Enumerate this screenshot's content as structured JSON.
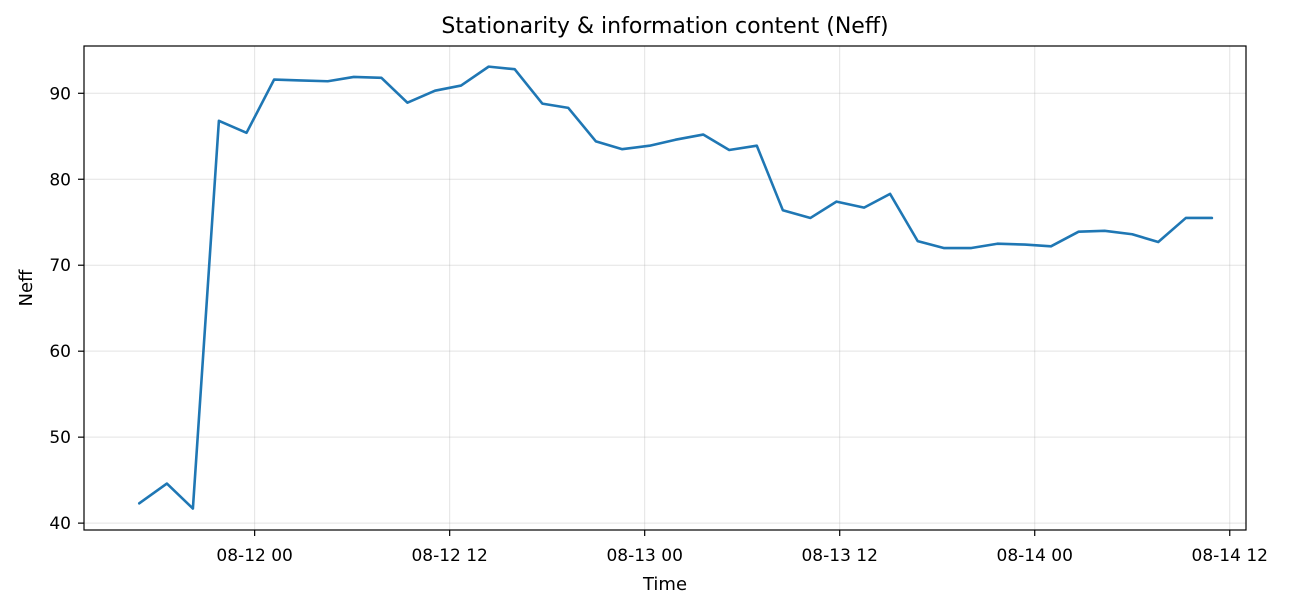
{
  "chart_data": {
    "type": "line",
    "title": "Stationarity & information content (Neff)",
    "xlabel": "Time",
    "ylabel": "Neff",
    "x_tick_labels": [
      "08-12 00",
      "08-12 12",
      "08-13 00",
      "08-13 12",
      "08-14 00",
      "08-14 12"
    ],
    "y_tick_labels": [
      "40",
      "50",
      "60",
      "70",
      "80",
      "90"
    ],
    "y_ticks": [
      40,
      50,
      60,
      70,
      80,
      90
    ],
    "xlim_hours": [
      -10.5,
      61
    ],
    "ylim": [
      39.2,
      95.5
    ],
    "grid": true,
    "series": [
      {
        "line_color": "#1f77b4",
        "x_hours": [
          -7.1,
          -5.4,
          -3.8,
          -2.2,
          -0.5,
          1.2,
          2.8,
          4.5,
          6.1,
          7.8,
          9.4,
          11.1,
          12.7,
          14.4,
          16.0,
          17.7,
          19.3,
          21.0,
          22.6,
          24.3,
          25.9,
          27.6,
          29.2,
          30.9,
          32.5,
          34.2,
          35.8,
          37.5,
          39.1,
          40.8,
          42.4,
          44.1,
          45.7,
          47.4,
          49.0,
          50.7,
          52.3,
          54.0,
          55.6,
          57.3,
          58.9
        ],
        "values": [
          42.3,
          44.6,
          41.7,
          86.8,
          85.4,
          91.6,
          91.5,
          91.4,
          91.9,
          91.8,
          88.9,
          90.3,
          90.9,
          93.1,
          92.8,
          88.8,
          88.3,
          84.4,
          83.5,
          83.9,
          84.6,
          85.2,
          83.4,
          83.9,
          76.4,
          75.5,
          77.4,
          76.7,
          78.3,
          72.8,
          72.0,
          72.0,
          72.5,
          72.4,
          72.2,
          73.9,
          74.0,
          73.6,
          72.7,
          75.5,
          75.5
        ]
      }
    ]
  }
}
